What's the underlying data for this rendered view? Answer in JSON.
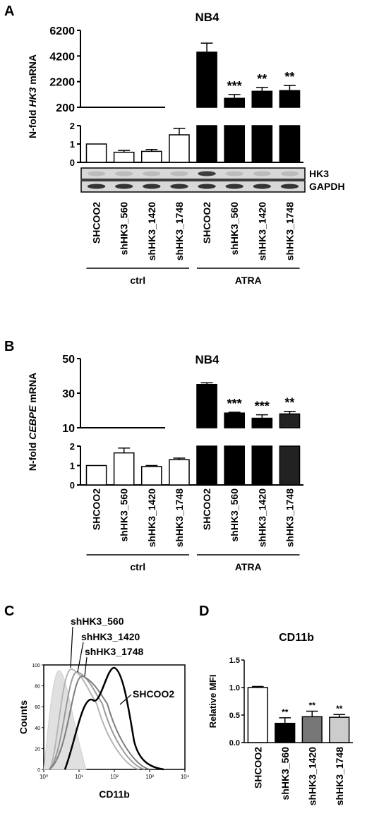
{
  "panels": {
    "A": "A",
    "B": "B",
    "C": "C",
    "D": "D"
  },
  "chart_data": [
    {
      "panel": "A",
      "type": "bar",
      "title": "NB4",
      "ylabel_prefix": "N-fold ",
      "ylabel_gene": "HK3",
      "ylabel_suffix": " mRNA",
      "categories": [
        "SHCOO2",
        "shHK3_560",
        "shHK3_1420",
        "shHK3_1748",
        "SHCOO2",
        "shHK3_560",
        "shHK3_1420",
        "shHK3_1748"
      ],
      "groups": [
        {
          "label": "ctrl",
          "indices": [
            0,
            1,
            2,
            3
          ]
        },
        {
          "label": "ATRA",
          "indices": [
            4,
            5,
            6,
            7
          ]
        }
      ],
      "values": [
        1.0,
        0.55,
        0.6,
        1.5,
        4500,
        900,
        1450,
        1500
      ],
      "errors": [
        0,
        0.1,
        0.1,
        0.35,
        700,
        300,
        300,
        400
      ],
      "fills": [
        "#ffffff",
        "#ffffff",
        "#ffffff",
        "#ffffff",
        "#000000",
        "#000000",
        "#000000",
        "#000000"
      ],
      "significance": [
        "",
        "",
        "",
        "",
        "",
        "***",
        "**",
        "**"
      ],
      "upper_axis": {
        "range": [
          200,
          6200
        ],
        "ticks": [
          "6200",
          "4200",
          "2200",
          "200"
        ]
      },
      "lower_axis": {
        "range": [
          0,
          2
        ],
        "ticks": [
          "2",
          "1",
          "0"
        ]
      },
      "blot_labels": [
        "HK3",
        "GAPDH"
      ]
    },
    {
      "panel": "B",
      "type": "bar",
      "title": "NB4",
      "ylabel_prefix": "N-fold ",
      "ylabel_gene": "CEBPE",
      "ylabel_suffix": " mRNA",
      "categories": [
        "SHCOO2",
        "shHK3_560",
        "shHK3_1420",
        "shHK3_1748",
        "SHCOO2",
        "shHK3_560",
        "shHK3_1420",
        "shHK3_1748"
      ],
      "groups": [
        {
          "label": "ctrl",
          "indices": [
            0,
            1,
            2,
            3
          ]
        },
        {
          "label": "ATRA",
          "indices": [
            4,
            5,
            6,
            7
          ]
        }
      ],
      "values": [
        1.0,
        1.65,
        0.95,
        1.3,
        35,
        18.5,
        15.5,
        18
      ],
      "errors": [
        0,
        0.25,
        0.05,
        0.08,
        1,
        0.5,
        2,
        1.5
      ],
      "fills": [
        "#ffffff",
        "#ffffff",
        "#ffffff",
        "#ffffff",
        "#000000",
        "#000000",
        "#000000",
        "#222222"
      ],
      "significance": [
        "",
        "",
        "",
        "",
        "",
        "***",
        "***",
        "**"
      ],
      "upper_axis": {
        "range": [
          10,
          50
        ],
        "ticks": [
          "50",
          "30",
          "10"
        ]
      },
      "lower_axis": {
        "range": [
          0,
          2
        ],
        "ticks": [
          "2",
          "1",
          "0"
        ]
      }
    },
    {
      "panel": "C",
      "type": "histogram",
      "xlabel": "CD11b",
      "ylabel": "Counts",
      "x_scale": "log",
      "x_ticks": [
        "10⁰",
        "10¹",
        "10²",
        "10³",
        "10⁴"
      ],
      "y_ticks": [
        "0",
        "20",
        "40",
        "60",
        "80",
        "100"
      ],
      "series": [
        {
          "name": "shHK3_560",
          "color": "#b5b5b5"
        },
        {
          "name": "shHK3_1420",
          "color": "#9a9a9a"
        },
        {
          "name": "shHK3_1748",
          "color": "#7d7d7d"
        },
        {
          "name": "SHCOO2",
          "color": "#000000"
        }
      ]
    },
    {
      "panel": "D",
      "type": "bar",
      "title": "CD11b",
      "ylabel": "Relative MFI",
      "categories": [
        "SHCOO2",
        "shHK3_560",
        "shHK3_1420",
        "shHK3_1748"
      ],
      "values": [
        1.0,
        0.35,
        0.47,
        0.46
      ],
      "errors": [
        0.02,
        0.1,
        0.1,
        0.05
      ],
      "fills": [
        "#ffffff",
        "#000000",
        "#777777",
        "#cccccc"
      ],
      "significance": [
        "",
        "**",
        "**",
        "**"
      ],
      "ylim": [
        0,
        1.2
      ],
      "y_ticks": [
        "0.0",
        "0.5",
        "1.0",
        "1.5"
      ]
    }
  ]
}
